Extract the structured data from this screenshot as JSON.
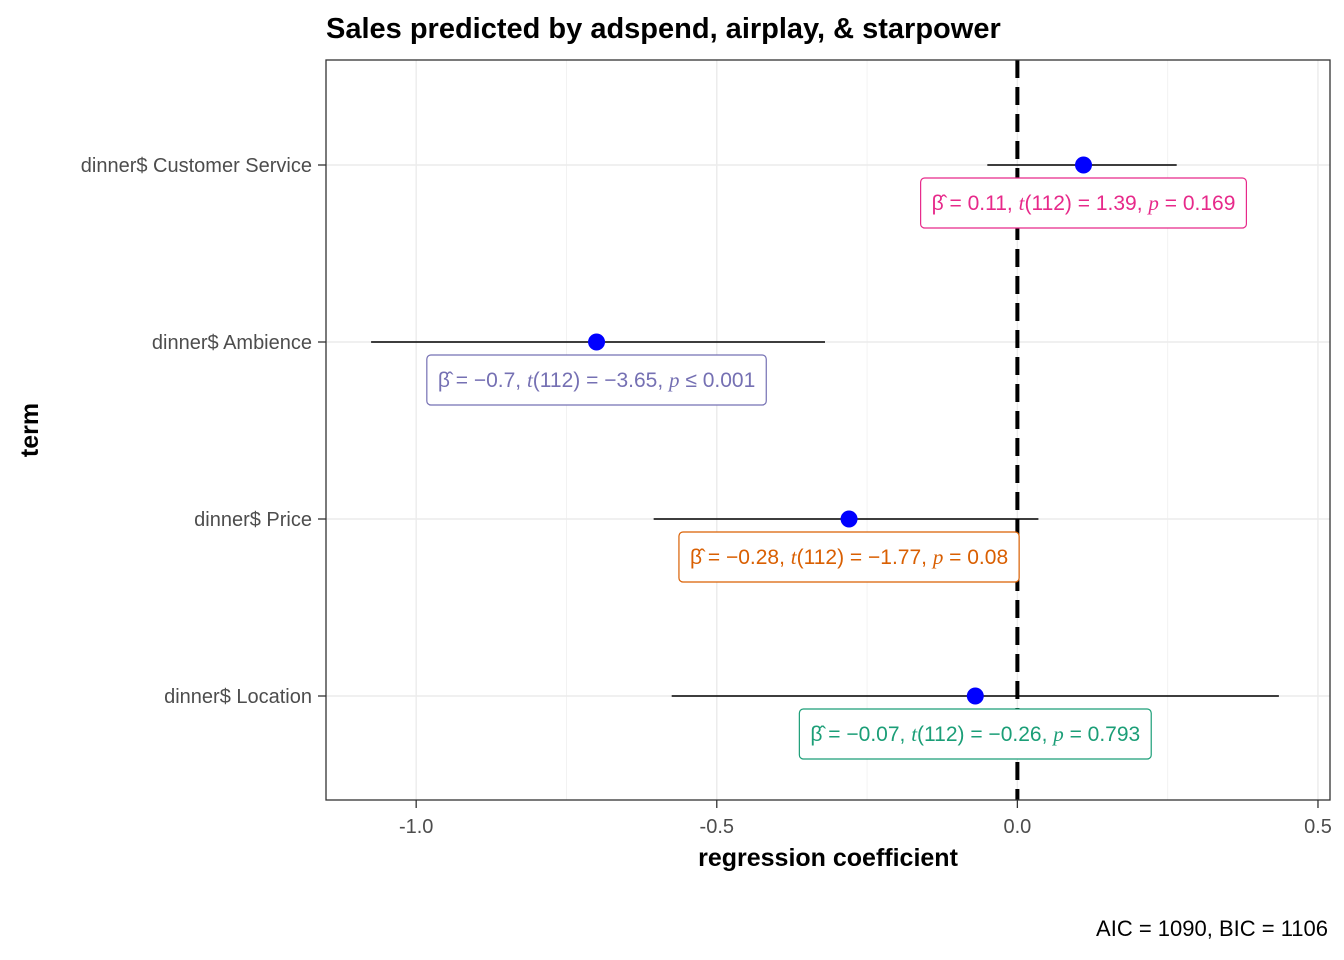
{
  "chart_data": {
    "type": "scatter",
    "title": "Sales predicted by adspend, airplay, & starpower",
    "xlabel": "regression coefficient",
    "ylabel": "term",
    "caption": "AIC = 1090, BIC = 1106",
    "xlim": [
      -1.15,
      0.52
    ],
    "x_ticks": [
      -1.0,
      -0.5,
      0.0,
      0.5
    ],
    "x_tick_labels": [
      "-1.0",
      "-0.5",
      "0.0",
      "0.5"
    ],
    "reference_line": 0,
    "grid": true,
    "terms": [
      {
        "term": "dinner$ Customer Service",
        "estimate": 0.11,
        "conf_low": -0.05,
        "conf_high": 0.265,
        "label_parts": [
          "β̂ = 0.11, ",
          "t",
          "(112) = 1.39, ",
          "p",
          " = 0.169"
        ],
        "color": "#e7298a"
      },
      {
        "term": "dinner$ Ambience",
        "estimate": -0.7,
        "conf_low": -1.075,
        "conf_high": -0.32,
        "label_parts": [
          "β̂ = −0.7, ",
          "t",
          "(112) = −3.65, ",
          "p",
          " ≤ 0.001"
        ],
        "color": "#7570b3"
      },
      {
        "term": "dinner$ Price",
        "estimate": -0.28,
        "conf_low": -0.605,
        "conf_high": 0.035,
        "label_parts": [
          "β̂ = −0.28, ",
          "t",
          "(112) = −1.77, ",
          "p",
          " = 0.08"
        ],
        "color": "#d95f02"
      },
      {
        "term": "dinner$ Location",
        "estimate": -0.07,
        "conf_low": -0.575,
        "conf_high": 0.435,
        "label_parts": [
          "β̂ = −0.07, ",
          "t",
          "(112) = −0.26, ",
          "p",
          " = 0.793"
        ],
        "color": "#1b9e77"
      }
    ],
    "point_color": "#0000ff"
  }
}
